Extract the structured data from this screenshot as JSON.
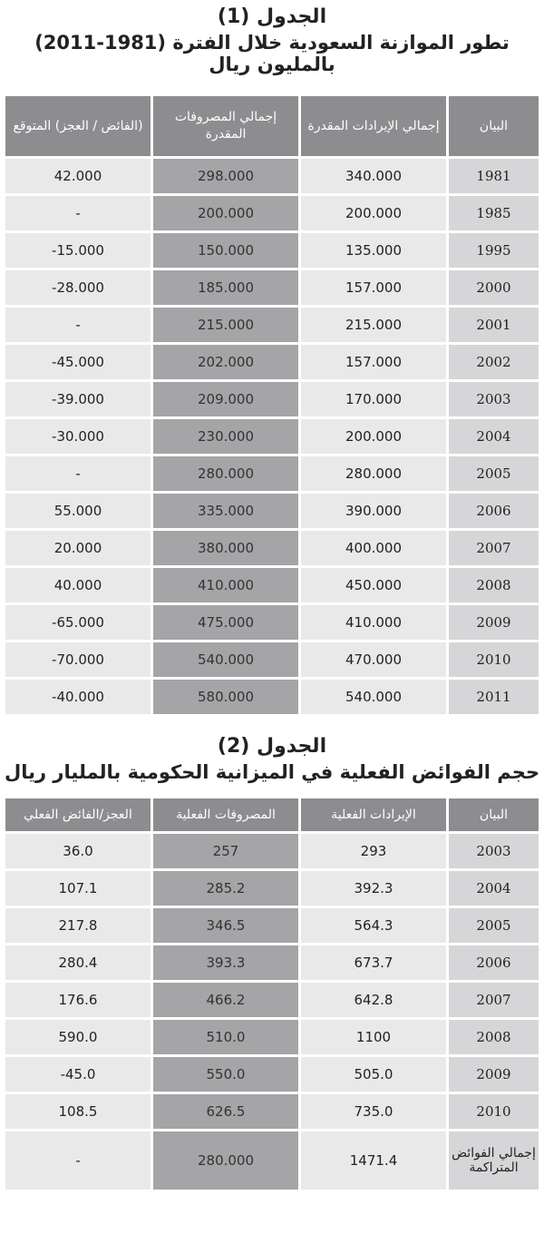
{
  "table1": {
    "title": "الجدول (1)",
    "subtitle": "تطور الموازنة السعودية خلال الفترة (1981-2011) بالمليون ريال",
    "headers": [
      "البيان",
      "إجمالي الإيرادات المقدرة",
      "إجمالي المصروفات المقدرة",
      "(الفائض / العجز) المتوقع"
    ],
    "rows": [
      [
        "1981",
        "340.000",
        "298.000",
        "42.000"
      ],
      [
        "1985",
        "200.000",
        "200.000",
        "-"
      ],
      [
        "1995",
        "135.000",
        "150.000",
        "-15.000"
      ],
      [
        "2000",
        "157.000",
        "185.000",
        "-28.000"
      ],
      [
        "2001",
        "215.000",
        "215.000",
        "-"
      ],
      [
        "2002",
        "157.000",
        "202.000",
        "-45.000"
      ],
      [
        "2003",
        "170.000",
        "209.000",
        "-39.000"
      ],
      [
        "2004",
        "200.000",
        "230.000",
        "-30.000"
      ],
      [
        "2005",
        "280.000",
        "280.000",
        "-"
      ],
      [
        "2006",
        "390.000",
        "335.000",
        "55.000"
      ],
      [
        "2007",
        "400.000",
        "380.000",
        "20.000"
      ],
      [
        "2008",
        "450.000",
        "410.000",
        "40.000"
      ],
      [
        "2009",
        "410.000",
        "475.000",
        "-65.000"
      ],
      [
        "2010",
        "470.000",
        "540.000",
        "-70.000"
      ],
      [
        "2011",
        "540.000",
        "580.000",
        "-40.000"
      ]
    ]
  },
  "table2": {
    "title": "الجدول (2)",
    "subtitle": "حجم الفوائض الفعلية في الميزانية الحكومية بالمليار ريال",
    "headers": [
      "البيان",
      "الإيرادات الفعلية",
      "المصروفات الفعلية",
      "العجز/الفائض الفعلي"
    ],
    "rows": [
      [
        "2003",
        "293",
        "257",
        "36.0"
      ],
      [
        "2004",
        "392.3",
        "285.2",
        "107.1"
      ],
      [
        "2005",
        "564.3",
        "346.5",
        "217.8"
      ],
      [
        "2006",
        "673.7",
        "393.3",
        "280.4"
      ],
      [
        "2007",
        "642.8",
        "466.2",
        "176.6"
      ],
      [
        "2008",
        "1100",
        "510.0",
        "590.0"
      ],
      [
        "2009",
        "505.0",
        "550.0",
        "-45.0"
      ],
      [
        "2010",
        "735.0",
        "626.5",
        "108.5"
      ],
      [
        "إجمالي الفوائض المتراكمة",
        "1471.4",
        "280.000",
        "-"
      ]
    ]
  }
}
